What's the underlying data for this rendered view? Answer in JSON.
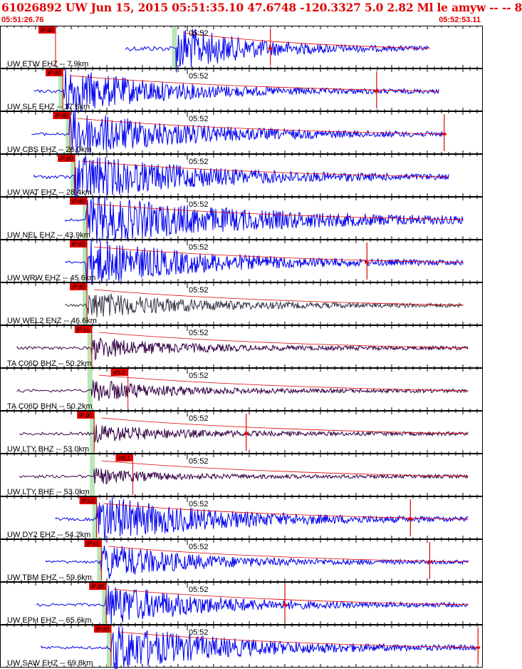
{
  "header": {
    "title": "61026892 UW Jun 15, 2015 05:51:35.10    47.6748 -120.3327  5.0 2.82 Ml le amyw -- --   8",
    "start_time": "05:51:26.76",
    "end_time": "05:52:53.11"
  },
  "colors": {
    "accent": "#e00000",
    "trace_blue": "#0000ee",
    "trace_dark": "#333344",
    "trace_purple": "#330044",
    "pick_bar": "#b8e6b8"
  },
  "minute_label": "05:52",
  "traces": [
    {
      "label": "UW ETW EHZ -- 7.9km",
      "pick": "iP:d0",
      "color": "blue",
      "pick_t": 0.115,
      "t0": 0.365,
      "t1": 0.89,
      "amp": 1.0,
      "decay": 0.28,
      "pre": 0.06,
      "preamp": 0.05,
      "marker": 0.56
    },
    {
      "label": "UW SLF EHZ -- 17.6km",
      "pick": "iP:d0",
      "color": "blue",
      "pick_t": 0.13,
      "t0": 0.13,
      "t1": 0.91,
      "amp": 1.0,
      "decay": 0.25,
      "pre": 0.015,
      "preamp": 0.0,
      "marker": 0.78
    },
    {
      "label": "UW CBS EHZ -- 26.0km",
      "pick": "iP:d0",
      "color": "blue",
      "pick_t": 0.145,
      "t0": 0.145,
      "t1": 0.92,
      "amp": 1.0,
      "decay": 0.3,
      "pre": 0.035,
      "preamp": 0.0,
      "marker": 0.92
    },
    {
      "label": "UW WAT EHZ -- 28.4km",
      "pick": "iP:d0",
      "color": "blue",
      "pick_t": 0.155,
      "t0": 0.155,
      "t1": 0.93,
      "amp": 1.0,
      "decay": 0.33,
      "pre": 0.04,
      "preamp": 0.02,
      "marker": null
    },
    {
      "label": "UW NEL EHZ -- 43.9km",
      "pick": "iP:d0",
      "color": "blue",
      "pick_t": 0.18,
      "t0": 0.18,
      "t1": 0.96,
      "amp": 1.0,
      "decay": 0.45,
      "pre": 0.0,
      "preamp": 0.0,
      "marker": null
    },
    {
      "label": "UW WRW EHZ -- 45.6km",
      "pick": "iP:d0",
      "color": "blue",
      "pick_t": 0.18,
      "t0": 0.18,
      "t1": 0.96,
      "amp": 1.0,
      "decay": 0.3,
      "pre": 0.0,
      "preamp": 0.0,
      "marker": 0.76
    },
    {
      "label": "UW WEL2 ENZ -- 46.6km",
      "pick": "iP:d0",
      "color": "dark",
      "pick_t": 0.18,
      "t0": 0.18,
      "t1": 0.96,
      "amp": 0.55,
      "decay": 0.25,
      "pre": 0.0,
      "preamp": 0.0,
      "marker": null
    },
    {
      "label": "TA C06D BHZ -- 50.2km",
      "pick": "iP:c1",
      "color": "purple",
      "pick_t": 0.19,
      "t0": 0.19,
      "t1": 0.97,
      "amp": 0.45,
      "decay": 0.2,
      "pre": 0.11,
      "preamp": 0.0,
      "marker": null
    },
    {
      "label": "TA C06D BHN -- 50.2km",
      "pick": "eS:2",
      "color": "purple",
      "pick_t": 0.265,
      "t0": 0.19,
      "t1": 0.97,
      "amp": 0.45,
      "decay": 0.18,
      "pre": 0.11,
      "preamp": 0.0,
      "marker": null
    },
    {
      "label": "UW LTY BHZ -- 53.0km",
      "pick": "iP:d0",
      "color": "purple",
      "pick_t": 0.195,
      "t0": 0.195,
      "t1": 0.97,
      "amp": 0.35,
      "decay": 0.2,
      "pre": 0.11,
      "preamp": 0.0,
      "marker": 0.51
    },
    {
      "label": "UW LTY BHE -- 53.0km",
      "pick": "eS:1",
      "color": "purple",
      "pick_t": 0.275,
      "t0": 0.195,
      "t1": 0.97,
      "amp": 0.3,
      "decay": 0.15,
      "pre": 0.11,
      "preamp": 0.0,
      "marker": null
    },
    {
      "label": "UW DY2 EHZ -- 54.2km",
      "pick": "iP:c2",
      "color": "blue",
      "pick_t": 0.2,
      "t0": 0.2,
      "t1": 0.97,
      "amp": 1.0,
      "decay": 0.3,
      "pre": 0.04,
      "preamp": 0.0,
      "marker": 0.85
    },
    {
      "label": "UW TBM EHZ -- 59.6km",
      "pick": "iP:c1",
      "color": "blue",
      "pick_t": 0.21,
      "t0": 0.21,
      "t1": 0.97,
      "amp": 0.8,
      "decay": 0.22,
      "pre": 0.07,
      "preamp": 0.0,
      "marker": 0.89
    },
    {
      "label": "UW EPH EHZ -- 65.6km",
      "pick": "iP:d0",
      "color": "blue",
      "pick_t": 0.22,
      "t0": 0.22,
      "t1": 0.97,
      "amp": 0.9,
      "decay": 0.25,
      "pre": 0.1,
      "preamp": 0.0,
      "marker": 0.59
    },
    {
      "label": "UW SAW EHZ -- 69.8km",
      "pick": "iP:d0",
      "color": "blue",
      "pick_t": 0.23,
      "t0": 0.23,
      "t1": 0.99,
      "amp": 1.0,
      "decay": 0.3,
      "pre": 0.1,
      "preamp": 0.0,
      "marker": 0.99
    }
  ]
}
